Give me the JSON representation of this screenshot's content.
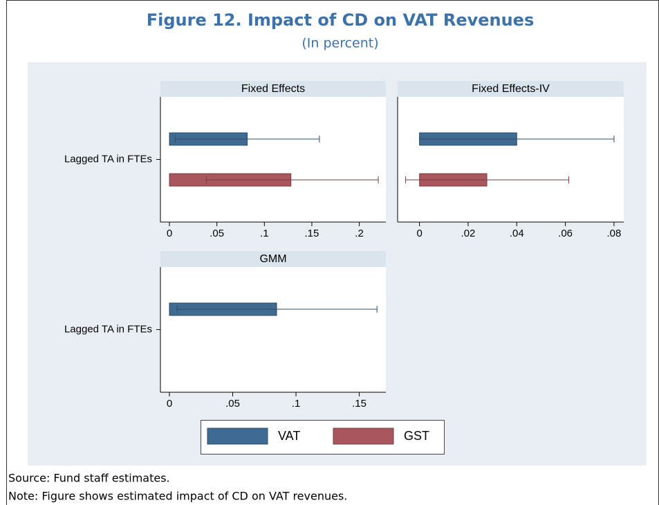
{
  "header": {
    "title": "Figure 12. Impact of CD on VAT Revenues",
    "subtitle": "(In percent)"
  },
  "footer": {
    "source": "Source: Fund staff estimates.",
    "note": "Note: Figure shows estimated impact of CD on VAT revenues."
  },
  "chart_data": [
    {
      "type": "bar",
      "title": "Fixed Effects",
      "categories": [
        "Lagged TA in FTEs"
      ],
      "series": [
        {
          "name": "VAT",
          "color": "#3f6b93",
          "values": [
            0.082
          ],
          "ci_low": [
            0.006
          ],
          "ci_high": [
            0.158
          ]
        },
        {
          "name": "GST",
          "color": "#a9565f",
          "values": [
            0.128
          ],
          "ci_low": [
            0.039
          ],
          "ci_high": [
            0.22
          ]
        }
      ],
      "xlim": [
        -0.0095,
        0.228
      ],
      "xticks": [
        0,
        {
          "value": 0.05,
          "label": ".05"
        },
        {
          "value": 0.1,
          "label": ".1"
        },
        {
          "value": 0.15,
          "label": ".15"
        },
        {
          "value": 0.2,
          "label": ".2"
        }
      ]
    },
    {
      "type": "bar",
      "title": "Fixed Effects-IV",
      "categories": [
        null
      ],
      "series": [
        {
          "name": "VAT",
          "color": "#3f6b93",
          "values": [
            0.04
          ],
          "ci_low": [
            0.0
          ],
          "ci_high": [
            0.08
          ]
        },
        {
          "name": "GST",
          "color": "#a9565f",
          "values": [
            0.0277
          ],
          "ci_low": [
            -0.0057
          ],
          "ci_high": [
            0.0614
          ]
        }
      ],
      "xlim": [
        -0.009,
        0.084
      ],
      "xticks": [
        0,
        {
          "value": 0.02,
          "label": ".02"
        },
        {
          "value": 0.04,
          "label": ".04"
        },
        {
          "value": 0.06,
          "label": ".06"
        },
        {
          "value": 0.08,
          "label": ".08"
        }
      ]
    },
    {
      "type": "bar",
      "title": "GMM",
      "categories": [
        "Lagged TA in FTEs"
      ],
      "series": [
        {
          "name": "VAT",
          "color": "#3f6b93",
          "values": [
            0.0847
          ],
          "ci_low": [
            0.006
          ],
          "ci_high": [
            0.164
          ]
        }
      ],
      "xlim": [
        -0.0071,
        0.171
      ],
      "xticks": [
        0,
        {
          "value": 0.05,
          "label": ".05"
        },
        {
          "value": 0.1,
          "label": ".1"
        },
        {
          "value": 0.15,
          "label": ".15"
        }
      ]
    }
  ]
}
